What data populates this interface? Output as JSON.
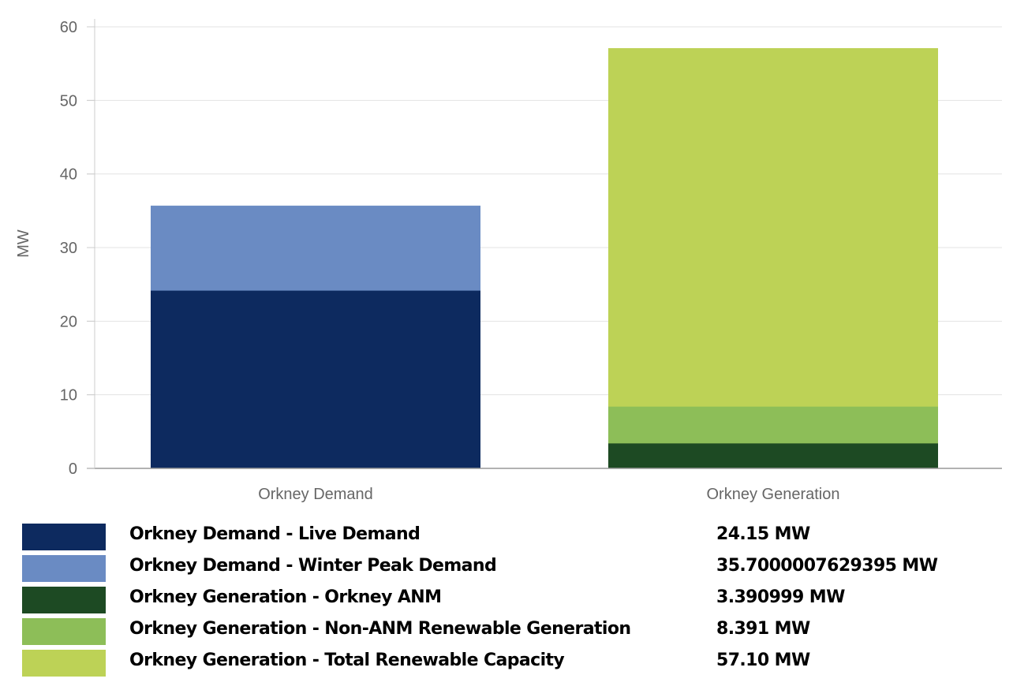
{
  "chart_data": {
    "type": "bar",
    "stacked": true,
    "categories": [
      "Orkney Demand",
      "Orkney Generation"
    ],
    "ylabel": "MW",
    "ylim": [
      0,
      60
    ],
    "yticks": [
      0,
      10,
      20,
      30,
      40,
      50,
      60
    ],
    "grid": true,
    "legend_position": "bottom",
    "series": [
      {
        "name": "Orkney Demand - Live Demand",
        "category": "Orkney Demand",
        "value": 24.15,
        "color": "#0d2a5f"
      },
      {
        "name": "Orkney Demand - Winter Peak Demand",
        "category": "Orkney Demand",
        "value": 35.7000007629395,
        "color": "#6a8bc3"
      },
      {
        "name": "Orkney Generation - Orkney ANM",
        "category": "Orkney Generation",
        "value": 3.390999,
        "color": "#1d4a23"
      },
      {
        "name": "Orkney Generation - Non-ANM Renewable Generation",
        "category": "Orkney Generation",
        "value": 8.391,
        "color": "#8dbe58"
      },
      {
        "name": "Orkney Generation - Total Renewable Capacity",
        "category": "Orkney Generation",
        "value": 57.1,
        "color": "#bdd256"
      }
    ]
  },
  "legend": {
    "items": [
      {
        "label": "Orkney Demand - Live Demand",
        "value": "24.15 MW",
        "color": "#0d2a5f"
      },
      {
        "label": "Orkney Demand - Winter Peak Demand",
        "value": "35.7000007629395 MW",
        "color": "#6a8bc3"
      },
      {
        "label": "Orkney Generation - Orkney ANM",
        "value": "3.390999 MW",
        "color": "#1d4a23"
      },
      {
        "label": "Orkney Generation - Non-ANM Renewable Generation",
        "value": "8.391 MW",
        "color": "#8dbe58"
      },
      {
        "label": "Orkney Generation - Total Renewable Capacity",
        "value": "57.10 MW",
        "color": "#bdd256"
      }
    ]
  }
}
